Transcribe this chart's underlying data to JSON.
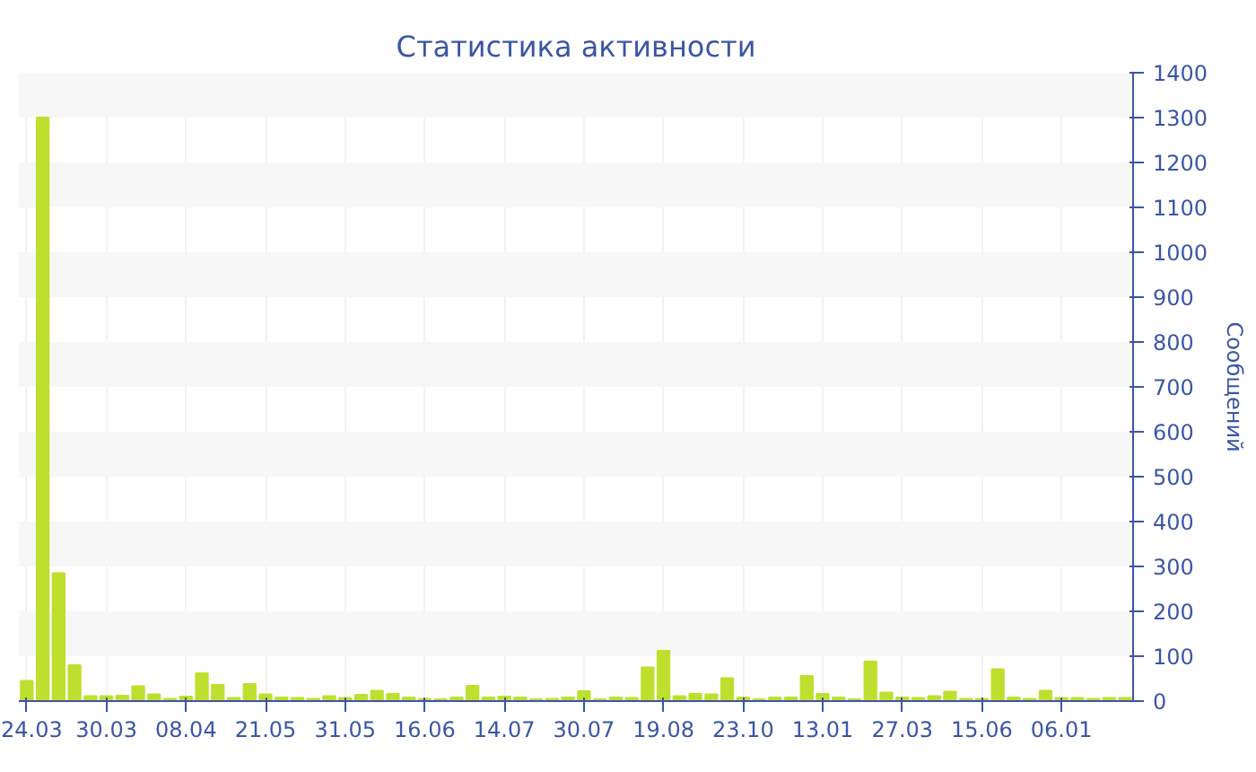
{
  "chart_data": {
    "type": "bar",
    "title": "Статистика активности",
    "ylabel": "Сообщений",
    "categories": [
      "24.03",
      null,
      null,
      null,
      null,
      "30.03",
      null,
      null,
      null,
      null,
      "08.04",
      null,
      null,
      null,
      null,
      "21.05",
      null,
      null,
      null,
      null,
      "31.05",
      null,
      null,
      null,
      null,
      "16.06",
      null,
      null,
      null,
      null,
      "14.07",
      null,
      null,
      null,
      null,
      "30.07",
      null,
      null,
      null,
      null,
      "19.08",
      null,
      null,
      null,
      null,
      "23.10",
      null,
      null,
      null,
      null,
      "13.01",
      null,
      null,
      null,
      null,
      "27.03",
      null,
      null,
      null,
      null,
      "15.06",
      null,
      null,
      null,
      null,
      "06.01",
      null,
      null,
      null,
      null
    ],
    "values": [
      45,
      1300,
      285,
      80,
      11,
      11,
      12,
      33,
      15,
      5,
      10,
      62,
      36,
      7,
      38,
      15,
      8,
      7,
      5,
      11,
      7,
      14,
      23,
      16,
      8,
      5,
      4,
      8,
      34,
      8,
      10,
      8,
      4,
      5,
      8,
      22,
      4,
      8,
      7,
      75,
      112,
      11,
      16,
      15,
      51,
      8,
      4,
      8,
      8,
      56,
      16,
      8,
      4,
      88,
      19,
      8,
      7,
      11,
      21,
      5,
      5,
      71,
      8,
      5,
      23,
      7,
      7,
      5,
      7,
      7
    ],
    "color": "#bedf2e",
    "ylim": [
      0,
      1400
    ],
    "yticks": [
      0,
      100,
      200,
      300,
      400,
      500,
      600,
      700,
      800,
      900,
      1000,
      1100,
      1200,
      1300,
      1400
    ],
    "grid": true
  }
}
